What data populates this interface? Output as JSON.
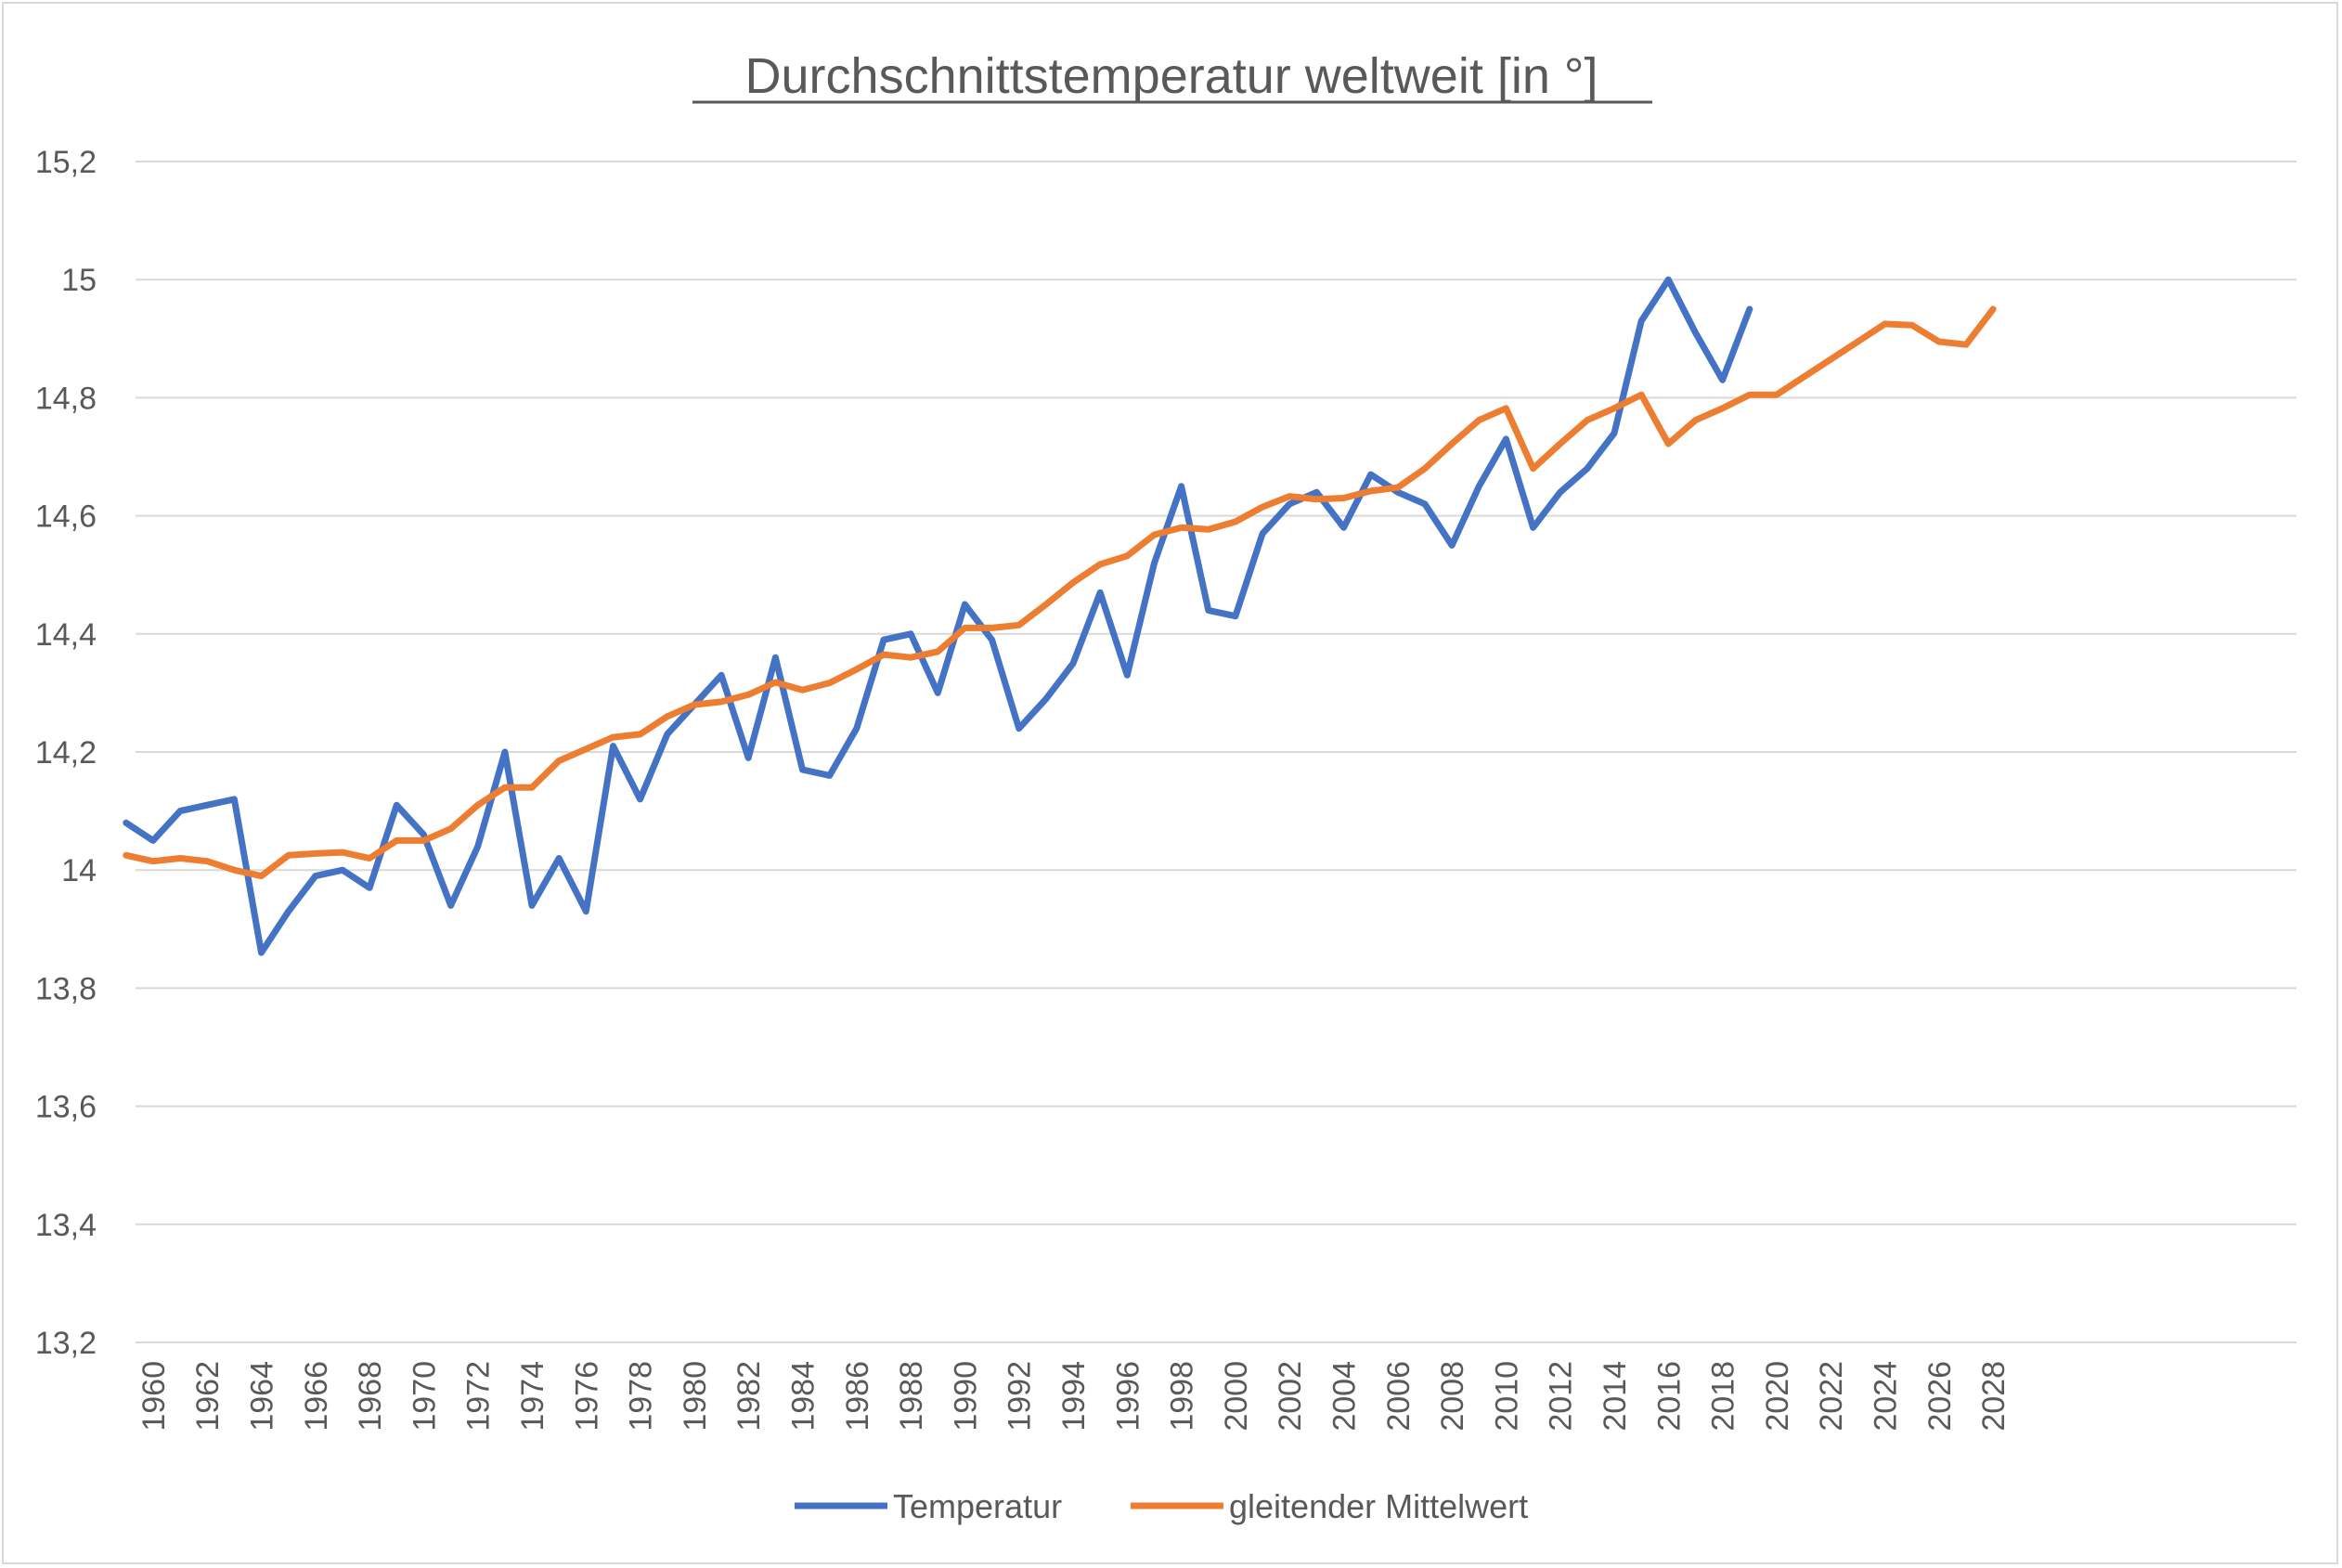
{
  "chart_data": {
    "type": "line",
    "title": "Durchschnittstemperatur weltweit [in °]",
    "xlabel": "",
    "ylabel": "",
    "ylim": [
      13.2,
      15.2
    ],
    "y_ticks": [
      "13,2",
      "13,4",
      "13,6",
      "13,8",
      "14",
      "14,2",
      "14,4",
      "14,6",
      "14,8",
      "15",
      "15,2"
    ],
    "y_tick_values": [
      13.2,
      13.4,
      13.6,
      13.8,
      14.0,
      14.2,
      14.4,
      14.6,
      14.8,
      15.0,
      15.2
    ],
    "x_years": [
      1960,
      1961,
      1962,
      1963,
      1964,
      1965,
      1966,
      1967,
      1968,
      1969,
      1970,
      1971,
      1972,
      1973,
      1974,
      1975,
      1976,
      1977,
      1978,
      1979,
      1980,
      1981,
      1982,
      1983,
      1984,
      1985,
      1986,
      1987,
      1988,
      1989,
      1990,
      1991,
      1992,
      1993,
      1994,
      1995,
      1996,
      1997,
      1998,
      1999,
      2000,
      2001,
      2002,
      2003,
      2004,
      2005,
      2006,
      2007,
      2008,
      2009,
      2010,
      2011,
      2012,
      2013,
      2014,
      2015,
      2016,
      2017,
      2018,
      2019,
      2020,
      2021,
      2022,
      2023,
      2024,
      2025,
      2026,
      2027,
      2028
    ],
    "x_tick_labels": [
      "1960",
      "1962",
      "1964",
      "1966",
      "1968",
      "1970",
      "1972",
      "1974",
      "1976",
      "1978",
      "1980",
      "1982",
      "1984",
      "1986",
      "1988",
      "1990",
      "1992",
      "1994",
      "1996",
      "1998",
      "2000",
      "2002",
      "2004",
      "2006",
      "2008",
      "2010",
      "2012",
      "2014",
      "2016",
      "2018",
      "2020",
      "2022",
      "2024",
      "2026",
      "2028"
    ],
    "x_tick_years": [
      1960,
      1962,
      1964,
      1966,
      1968,
      1970,
      1972,
      1974,
      1976,
      1978,
      1980,
      1982,
      1984,
      1986,
      1988,
      1990,
      1992,
      1994,
      1996,
      1998,
      2000,
      2002,
      2004,
      2006,
      2008,
      2010,
      2012,
      2014,
      2016,
      2018,
      2020,
      2022,
      2024,
      2026,
      2028
    ],
    "grid": true,
    "legend_position": "bottom",
    "series": [
      {
        "name": "Temperatur",
        "color": "#4472c4",
        "x": [
          1959,
          1960,
          1961,
          1962,
          1963,
          1964,
          1965,
          1966,
          1967,
          1968,
          1969,
          1970,
          1971,
          1972,
          1973,
          1974,
          1975,
          1976,
          1977,
          1978,
          1979,
          1980,
          1981,
          1982,
          1983,
          1984,
          1985,
          1986,
          1987,
          1988,
          1989,
          1990,
          1991,
          1992,
          1993,
          1994,
          1995,
          1996,
          1997,
          1998,
          1999,
          2000,
          2001,
          2002,
          2003,
          2004,
          2005,
          2006,
          2007,
          2008,
          2009,
          2010,
          2011,
          2012,
          2013,
          2014,
          2015,
          2016,
          2017,
          2018,
          2019
        ],
        "values": [
          14.08,
          14.05,
          14.1,
          14.11,
          14.12,
          13.86,
          13.93,
          13.99,
          14.0,
          13.97,
          14.11,
          14.06,
          13.94,
          14.04,
          14.2,
          13.94,
          14.02,
          13.93,
          14.21,
          14.12,
          14.23,
          14.28,
          14.33,
          14.19,
          14.36,
          14.17,
          14.16,
          14.24,
          14.39,
          14.4,
          14.3,
          14.45,
          14.39,
          14.24,
          14.29,
          14.35,
          14.47,
          14.33,
          14.52,
          14.65,
          14.44,
          14.43,
          14.57,
          14.62,
          14.64,
          14.58,
          14.67,
          14.64,
          14.62,
          14.55,
          14.65,
          14.73,
          14.58,
          14.64,
          14.68,
          14.74,
          14.93,
          15.0,
          14.91,
          14.83,
          14.95
        ]
      },
      {
        "name": "gleitender Mittelwert",
        "color": "#ed7d31",
        "x": [
          1959,
          1960,
          1961,
          1962,
          1963,
          1964,
          1965,
          1966,
          1967,
          1968,
          1969,
          1970,
          1971,
          1972,
          1973,
          1974,
          1975,
          1976,
          1977,
          1978,
          1979,
          1980,
          1981,
          1982,
          1983,
          1984,
          1985,
          1986,
          1987,
          1988,
          1989,
          1990,
          1991,
          1992,
          1993,
          1994,
          1995,
          1996,
          1997,
          1998,
          1999,
          2000,
          2001,
          2002,
          2003,
          2004,
          2005,
          2006,
          2007,
          2008,
          2009,
          2010,
          2011,
          2012,
          2013,
          2014,
          2015,
          2016,
          2017,
          2018,
          2019,
          2020,
          2021,
          2022,
          2023,
          2024,
          2025,
          2026,
          2027,
          2028
        ],
        "values": [
          14.025,
          14.015,
          14.02,
          14.015,
          14.0,
          13.99,
          14.025,
          14.028,
          14.03,
          14.02,
          14.05,
          14.05,
          14.07,
          14.11,
          14.14,
          14.14,
          14.185,
          14.205,
          14.225,
          14.23,
          14.26,
          14.28,
          14.285,
          14.297,
          14.318,
          14.305,
          14.317,
          14.34,
          14.365,
          14.36,
          14.37,
          14.41,
          14.41,
          14.415,
          14.45,
          14.487,
          14.518,
          14.532,
          14.568,
          14.58,
          14.577,
          14.59,
          14.615,
          14.633,
          14.628,
          14.63,
          14.642,
          14.648,
          14.68,
          14.722,
          14.762,
          14.782,
          14.68,
          14.722,
          14.762,
          14.782,
          14.805,
          14.722,
          14.762,
          14.782,
          14.805,
          14.805,
          14.835,
          14.865,
          14.895,
          14.925,
          14.923,
          14.895,
          14.89,
          14.95
        ]
      }
    ]
  }
}
